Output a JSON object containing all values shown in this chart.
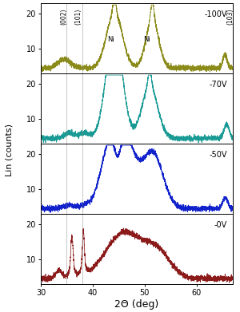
{
  "xlabel": "2Θ (deg)",
  "ylabel": "Lin (counts)",
  "xlim": [
    30,
    67
  ],
  "ylim": [
    3,
    23
  ],
  "yticks": [
    10,
    20
  ],
  "xticks": [
    30,
    40,
    50,
    60
  ],
  "panels": [
    {
      "label": "-100V",
      "color": "#8B8B1A"
    },
    {
      "label": "-70V",
      "color": "#1A9A95"
    },
    {
      "label": "-50V",
      "color": "#1122CC"
    },
    {
      "label": "-0V",
      "color": "#8B1A1A"
    }
  ],
  "vlines": [
    35.0,
    38.0
  ],
  "noise_seed": 42,
  "baseline": 4.5
}
